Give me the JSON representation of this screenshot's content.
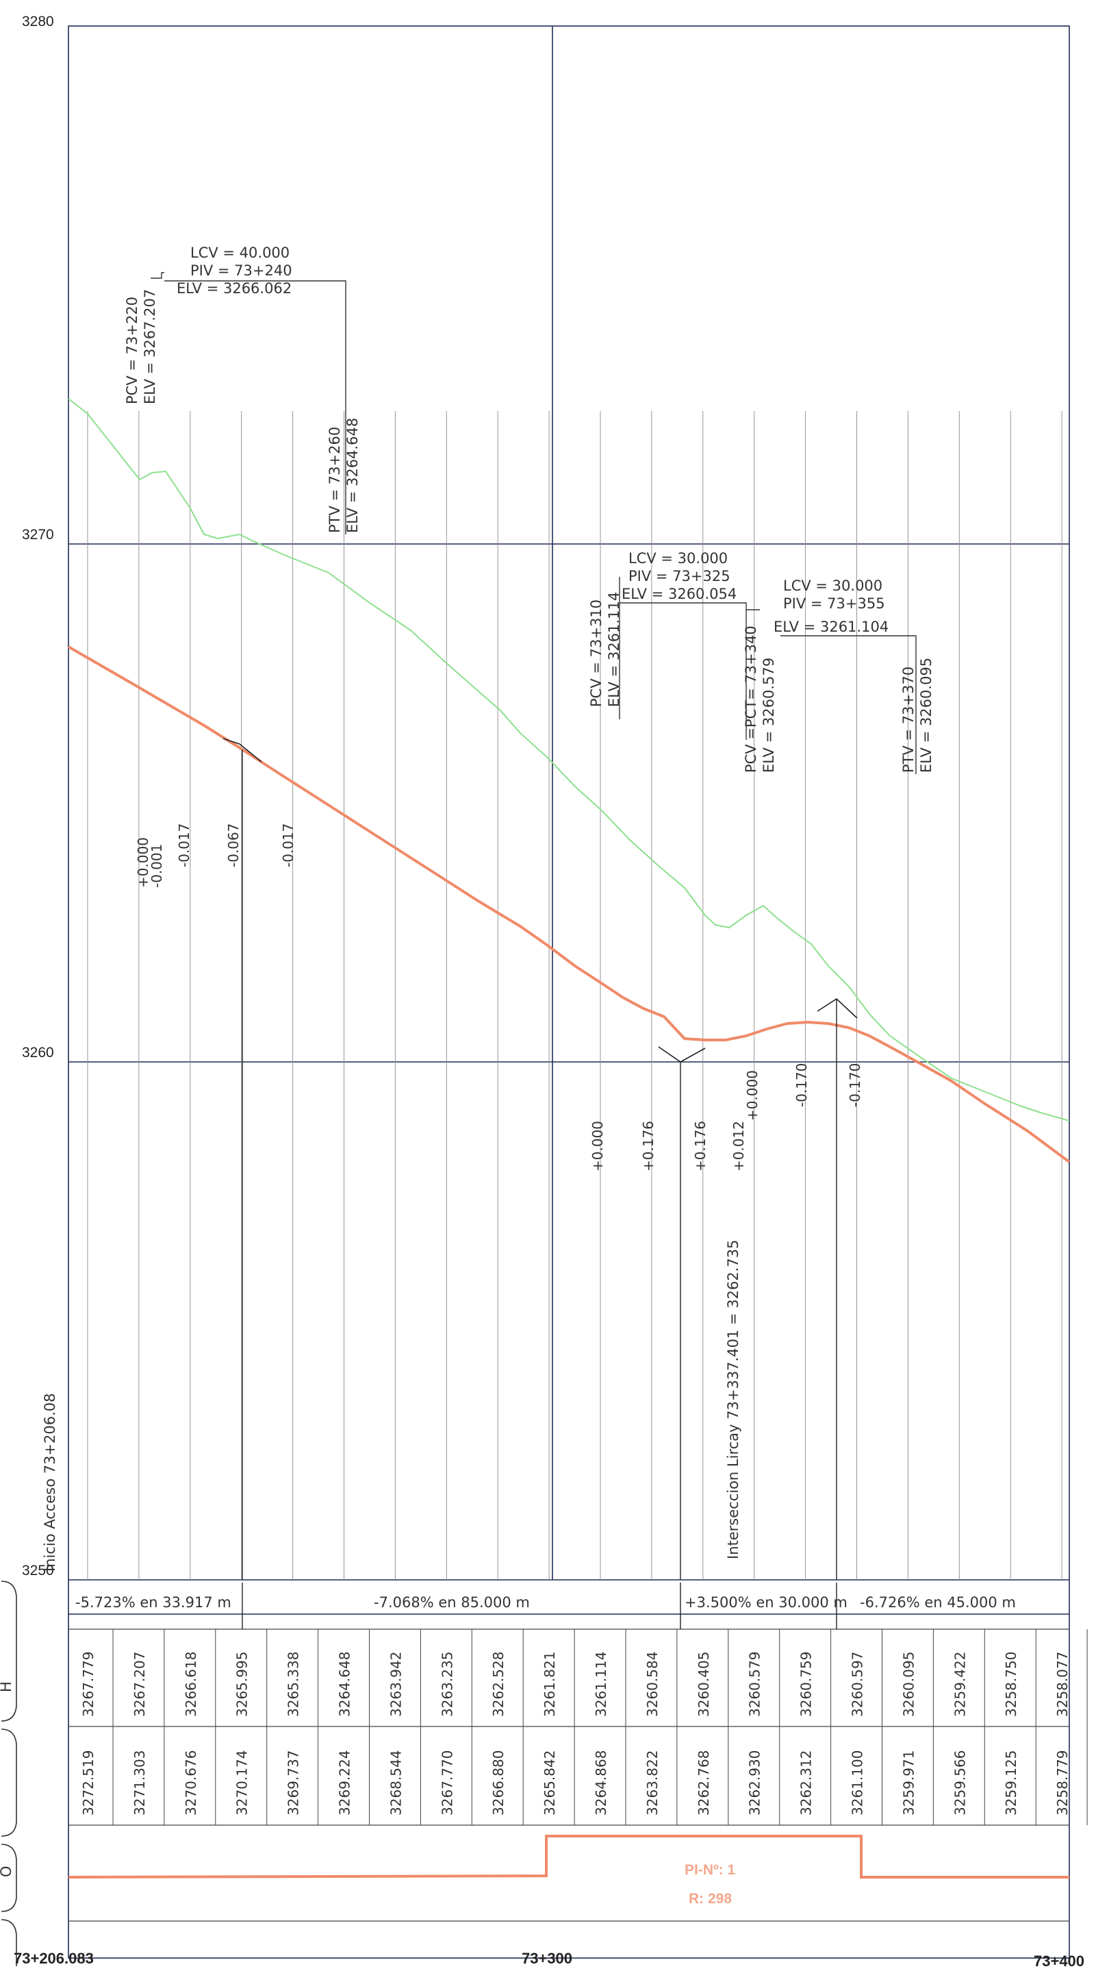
{
  "elevation_ticks": [
    "3280",
    "3270",
    "3260",
    "3250"
  ],
  "station_labels": [
    "73+206.083",
    "73+300",
    "73+400"
  ],
  "curves": [
    {
      "lcv": "LCV  =  40.000",
      "piv": "PIV  =  73+240",
      "elv": "ELV  =  3266.062"
    },
    {
      "lcv": "LCV  =  30.000",
      "piv": "PIV  =  73+325",
      "elv": "ELV  =  3260.054"
    },
    {
      "lcv": "LCV  =  30.000",
      "piv": "PIV  =  73+355",
      "elv": "ELV  =  3261.104"
    }
  ],
  "vertical_labels": {
    "pcv1": "PCV  =  73+220",
    "pcv1_elv": "ELV  =  3267.207",
    "ptv1": "PTV  =  73+260",
    "ptv1_elv": "ELV  =  3264.648",
    "pcv2": "PCV  =  73+310",
    "pcv2_elv": "ELV  =  3261.114",
    "pcv3": "PCV  =PCT=  73+340",
    "pcv3_elv": "ELV  =  3260.579",
    "ptv3": "PTV  =  73+370",
    "ptv3_elv": "ELV  =  3260.095",
    "inicio": "Inicio  Acceso  73+206.08",
    "interseccion": "Interseccion  Lircay  73+337.401  =  3262.735"
  },
  "corrections_top": [
    "+0.000",
    "-0.001",
    "-0.017",
    "-0.067",
    "-0.017"
  ],
  "corrections_bottom": [
    "+0.000",
    "+0.176",
    "+0.176",
    "+0.012",
    "+0.000",
    "-0.170",
    "-0.170"
  ],
  "grades": [
    "-5.723%  en  33.917  m",
    "-7.068%  en  85.000  m",
    "+3.500%  en  30.000  m",
    "-6.726%  en  45.000  m"
  ],
  "grade_elevations": [
    "3267.779",
    "3267.207",
    "3266.618",
    "3265.995",
    "3265.338",
    "3264.648",
    "3263.942",
    "3263.235",
    "3262.528",
    "3261.821",
    "3261.114",
    "3260.584",
    "3260.405",
    "3260.579",
    "3260.759",
    "3260.597",
    "3260.095",
    "3259.422",
    "3258.750",
    "3258.077"
  ],
  "ground_elevations": [
    "3272.519",
    "3271.303",
    "3270.676",
    "3270.174",
    "3269.737",
    "3269.224",
    "3268.544",
    "3267.770",
    "3266.880",
    "3265.842",
    "3264.868",
    "3263.822",
    "3262.768",
    "3262.930",
    "3262.312",
    "3261.100",
    "3259.971",
    "3259.566",
    "3259.125",
    "3258.779"
  ],
  "curvature": {
    "pi": "PI-Nº: 1",
    "radius": "R: 298"
  },
  "left_stub": "H",
  "left_stub2": "O",
  "colors": {
    "grade": "#f08a68",
    "ground": "#8de08d",
    "grid": "#1f2d57"
  },
  "chart_data": {
    "type": "line",
    "x": [
      73206.083,
      73220,
      73240,
      73260,
      73280,
      73300,
      73320,
      73340,
      73360,
      73380,
      73400
    ],
    "series": [],
    "ylim": [
      3250,
      3280
    ]
  }
}
